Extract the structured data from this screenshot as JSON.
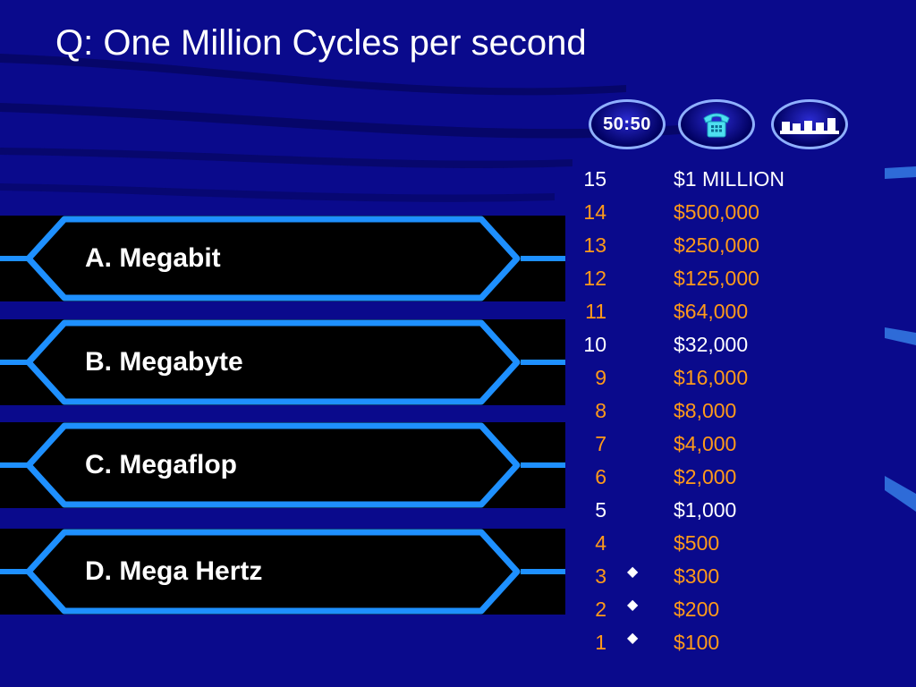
{
  "question": {
    "text": "Q: One Million Cycles per second"
  },
  "lifelines": [
    {
      "name": "fifty-fifty",
      "label": "50:50"
    },
    {
      "name": "phone-a-friend",
      "icon": "telephone-icon"
    },
    {
      "name": "ask-the-audience",
      "icon": "audience-bars-icon"
    }
  ],
  "answers": [
    {
      "label": "A. Megabit"
    },
    {
      "label": "B. Megabyte"
    },
    {
      "label": "C. Megaflop"
    },
    {
      "label": "D. Mega Hertz"
    }
  ],
  "ladder": [
    {
      "num": "15",
      "amount": "$1 MILLION",
      "milestone": true,
      "used": false
    },
    {
      "num": "14",
      "amount": "$500,000",
      "milestone": false,
      "used": false
    },
    {
      "num": "13",
      "amount": "$250,000",
      "milestone": false,
      "used": false
    },
    {
      "num": "12",
      "amount": "$125,000",
      "milestone": false,
      "used": false
    },
    {
      "num": "11",
      "amount": "$64,000",
      "milestone": false,
      "used": false
    },
    {
      "num": "10",
      "amount": "$32,000",
      "milestone": true,
      "used": false
    },
    {
      "num": "9",
      "amount": "$16,000",
      "milestone": false,
      "used": false
    },
    {
      "num": "8",
      "amount": "$8,000",
      "milestone": false,
      "used": false
    },
    {
      "num": "7",
      "amount": "$4,000",
      "milestone": false,
      "used": false
    },
    {
      "num": "6",
      "amount": "$2,000",
      "milestone": false,
      "used": false
    },
    {
      "num": "5",
      "amount": "$1,000",
      "milestone": true,
      "used": false
    },
    {
      "num": "4",
      "amount": "$500",
      "milestone": false,
      "used": false
    },
    {
      "num": "3",
      "amount": "$300",
      "milestone": false,
      "used": true
    },
    {
      "num": "2",
      "amount": "$200",
      "milestone": false,
      "used": true
    },
    {
      "num": "1",
      "amount": "$100",
      "milestone": false,
      "used": true
    }
  ],
  "colors": {
    "background": "#0a0a8c",
    "answer_outline": "#1e90ff",
    "milestone_text": "#ffffff",
    "amount_text": "#ff9a1a"
  }
}
